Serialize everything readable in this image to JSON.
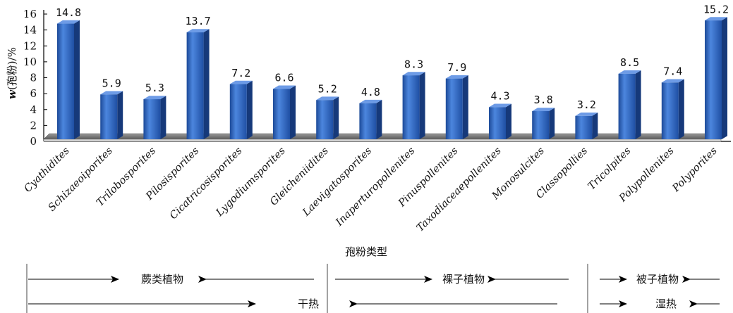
{
  "chart_data": {
    "type": "bar",
    "categories": [
      "Cyathidites",
      "Schizaeoiporites",
      "Trilobosporites",
      "Pilosisporites",
      "Cicatricosisporites",
      "Lygodiumsporites",
      "Gleicheniidites",
      "Laevigatosporites",
      "Inaperturopollenites",
      "Pinuspollenites",
      "Taxodiaceaepollenites",
      "Monosulcites",
      "Classopollies",
      "Tricolpites",
      "Polypollenites",
      "Polyporites"
    ],
    "values": [
      14.8,
      5.9,
      5.3,
      13.7,
      7.2,
      6.6,
      5.2,
      4.8,
      8.3,
      7.9,
      4.3,
      3.8,
      3.2,
      8.5,
      7.4,
      15.2
    ],
    "value_labels": [
      "14.8",
      "5.9",
      "5.3",
      "13.7",
      "7.2",
      "6.6",
      "5.2",
      "4.8",
      "8.3",
      "7.9",
      "4.3",
      "3.8",
      "3.2",
      "8.5",
      "7.4",
      "15.2"
    ],
    "ylabel_var": "w",
    "ylabel_rest": "(孢粉)/%",
    "xlabel": "孢粉类型",
    "ylim": [
      0,
      16
    ],
    "yticks": [
      0,
      2,
      4,
      6,
      8,
      10,
      12,
      14,
      16
    ],
    "bar_color": "#2b5fb3",
    "groups": [
      {
        "label": "蕨类植物",
        "climate": "干热"
      },
      {
        "label": "裸子植物"
      },
      {
        "label": "被子植物",
        "climate": "湿热"
      }
    ]
  }
}
